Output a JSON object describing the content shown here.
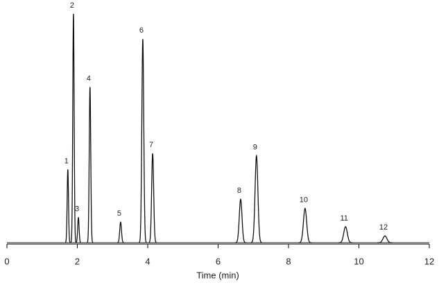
{
  "chart_data": {
    "type": "chromatogram",
    "xlabel": "Time (min)",
    "xlim": [
      0,
      12
    ],
    "xticks": [
      0,
      2,
      4,
      6,
      8,
      10,
      12
    ],
    "color": "#111111",
    "peaks": [
      {
        "label": "1",
        "x": 1.73,
        "height": 32
      },
      {
        "label": "2",
        "x": 1.89,
        "height": 100
      },
      {
        "label": "3",
        "x": 2.03,
        "height": 11
      },
      {
        "label": "4",
        "x": 2.36,
        "height": 68
      },
      {
        "label": "5",
        "x": 3.23,
        "height": 9
      },
      {
        "label": "6",
        "x": 3.86,
        "height": 89
      },
      {
        "label": "7",
        "x": 4.14,
        "height": 39
      },
      {
        "label": "8",
        "x": 6.64,
        "height": 19
      },
      {
        "label": "9",
        "x": 7.09,
        "height": 38
      },
      {
        "label": "10",
        "x": 8.47,
        "height": 15
      },
      {
        "label": "11",
        "x": 9.62,
        "height": 7
      },
      {
        "label": "12",
        "x": 10.74,
        "height": 3
      }
    ]
  }
}
